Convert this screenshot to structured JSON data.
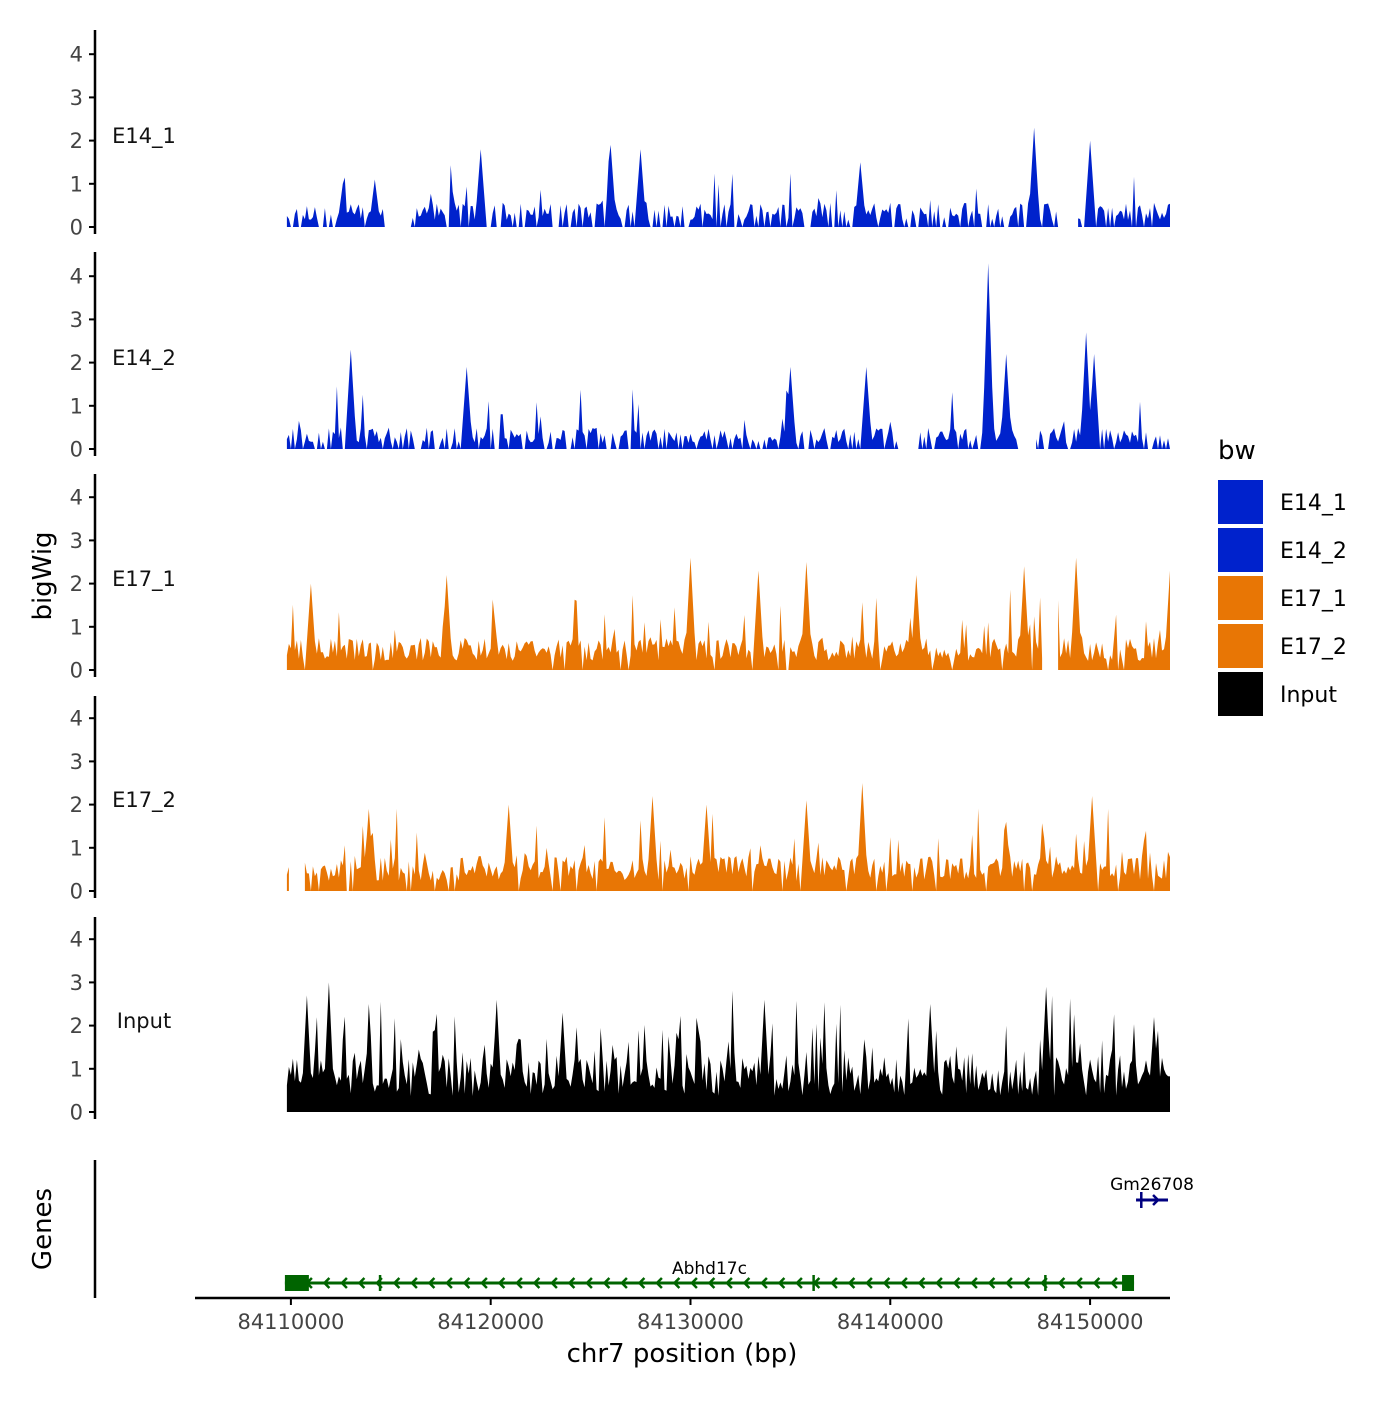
{
  "chart_data": {
    "type": "area",
    "title": "",
    "ylabel": "bigWig",
    "genes_label": "Genes",
    "xlabel": "chr7 position (bp)",
    "x_range": [
      84105200,
      84154000
    ],
    "x_ticks": [
      84110000,
      84120000,
      84130000,
      84140000,
      84150000
    ],
    "x_tick_labels": [
      "84110000",
      "84120000",
      "84130000",
      "84140000",
      "84150000"
    ],
    "y_range": [
      0,
      4.5
    ],
    "y_ticks": [
      0,
      1,
      2,
      3,
      4
    ],
    "y_tick_labels": [
      "0",
      "1",
      "2",
      "3",
      "4"
    ],
    "data_x_start": 84109800,
    "data_x_end": 84154000,
    "bin_width": 100,
    "legend": {
      "title": "bw",
      "position": "right",
      "entries": [
        {
          "label": "E14_1",
          "color": "#0022cc"
        },
        {
          "label": "E14_2",
          "color": "#0022cc"
        },
        {
          "label": "E17_1",
          "color": "#e87605"
        },
        {
          "label": "E17_2",
          "color": "#e87605"
        },
        {
          "label": "Input",
          "color": "#000000"
        }
      ]
    },
    "series": [
      {
        "name": "E14_1",
        "color": "#0022cc",
        "seed": 11,
        "base": 0.45,
        "spike_prob": 0.09,
        "spike_max": 1.0,
        "zero_prob": 0.35,
        "gaps": [
          [
            84114800,
            84115700
          ],
          [
            84148500,
            84149300
          ]
        ],
        "peaks": [
          [
            84112600,
            1.0
          ],
          [
            84114200,
            1.1
          ],
          [
            84119500,
            1.8
          ],
          [
            84126000,
            1.9
          ],
          [
            84127500,
            1.8
          ],
          [
            84138500,
            1.5
          ],
          [
            84147200,
            2.3
          ],
          [
            84150000,
            2.0
          ]
        ]
      },
      {
        "name": "E14_2",
        "color": "#0022cc",
        "seed": 23,
        "base": 0.4,
        "spike_prob": 0.09,
        "spike_max": 1.0,
        "zero_prob": 0.3,
        "gaps": [
          [
            84140500,
            84141300
          ],
          [
            84146500,
            84147200
          ]
        ],
        "peaks": [
          [
            84113000,
            2.3
          ],
          [
            84118800,
            1.9
          ],
          [
            84135000,
            1.9
          ],
          [
            84138800,
            1.9
          ],
          [
            84144900,
            4.3
          ],
          [
            84145800,
            2.2
          ],
          [
            84149800,
            2.7
          ],
          [
            84150200,
            2.2
          ]
        ]
      },
      {
        "name": "E17_1",
        "color": "#e87605",
        "seed": 37,
        "base": 0.6,
        "spike_prob": 0.12,
        "spike_max": 1.3,
        "zero_prob": 0.05,
        "gaps": [
          [
            84147700,
            84148300
          ]
        ],
        "peaks": [
          [
            84111000,
            2.0
          ],
          [
            84117800,
            2.2
          ],
          [
            84130000,
            2.6
          ],
          [
            84133400,
            2.3
          ],
          [
            84135800,
            2.5
          ],
          [
            84141300,
            2.2
          ],
          [
            84146700,
            2.4
          ],
          [
            84149300,
            2.6
          ],
          [
            84154000,
            2.3
          ]
        ]
      },
      {
        "name": "E17_2",
        "color": "#e87605",
        "seed": 51,
        "base": 0.65,
        "spike_prob": 0.12,
        "spike_max": 1.3,
        "zero_prob": 0.08,
        "gaps": [
          [
            84110000,
            84110600
          ]
        ],
        "peaks": [
          [
            84113900,
            1.9
          ],
          [
            84120900,
            2.0
          ],
          [
            84128100,
            2.2
          ],
          [
            84130800,
            2.0
          ],
          [
            84135800,
            2.1
          ],
          [
            84138600,
            2.5
          ],
          [
            84145800,
            1.6
          ],
          [
            84150100,
            2.2
          ]
        ]
      },
      {
        "name": "Input",
        "color": "#000000",
        "seed": 73,
        "base": 1.05,
        "spike_prob": 0.2,
        "spike_max": 1.6,
        "zero_prob": 0.0,
        "gaps": [],
        "peaks": [
          [
            84110800,
            2.7
          ],
          [
            84111900,
            3.0
          ],
          [
            84120300,
            2.6
          ],
          [
            84123600,
            2.3
          ],
          [
            84133700,
            2.6
          ],
          [
            84142000,
            2.5
          ],
          [
            84147800,
            2.9
          ],
          [
            84153200,
            2.2
          ]
        ]
      }
    ],
    "genes": [
      {
        "name": "Abhd17c",
        "color": "#006400",
        "start": 84109700,
        "end": 84152200,
        "strand": "-",
        "exons": [
          [
            84109700,
            84110900
          ],
          [
            84114400,
            84114500
          ],
          [
            84136100,
            84136200
          ],
          [
            84147700,
            84147800
          ],
          [
            84151600,
            84152200
          ]
        ]
      },
      {
        "name": "Gm26708",
        "color": "#000080",
        "start": 84152300,
        "end": 84153900,
        "strand": "+",
        "exons": [
          [
            84152500,
            84152600
          ]
        ]
      }
    ]
  }
}
